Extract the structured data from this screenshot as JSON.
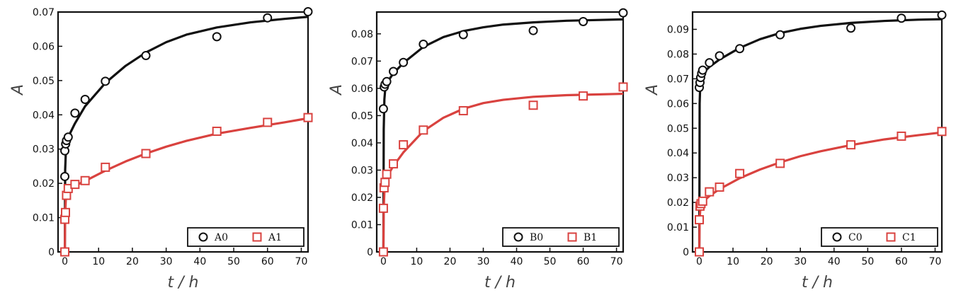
{
  "colors": {
    "black_series": "#111111",
    "red_series": "#d9423f",
    "axis": "#111111"
  },
  "chart_data": [
    {
      "type": "scatter",
      "xlabel": "t / h",
      "ylabel": "A",
      "xlim": [
        -2,
        72
      ],
      "ylim": [
        0,
        0.07
      ],
      "xticks": [
        "0",
        "10",
        "20",
        "30",
        "40",
        "50",
        "60",
        "70"
      ],
      "yticks": [
        "0",
        "0.01",
        "0.02",
        "0.03",
        "0.04",
        "0.05",
        "0.06",
        "0.07"
      ],
      "legend_position": "bottom-right",
      "series": [
        {
          "name": "A0",
          "marker": "circle",
          "color": "#111111",
          "points": [
            [
              0,
              0.022
            ],
            [
              0,
              0.0295
            ],
            [
              0.25,
              0.0315
            ],
            [
              0.5,
              0.0325
            ],
            [
              1,
              0.0335
            ],
            [
              3,
              0.0405
            ],
            [
              6,
              0.0445
            ],
            [
              12,
              0.0498
            ],
            [
              24,
              0.0573
            ],
            [
              45,
              0.0628
            ],
            [
              60,
              0.0683
            ],
            [
              72,
              0.0701
            ]
          ],
          "fit": [
            [
              0,
              0.0
            ],
            [
              0.1,
              0.024
            ],
            [
              0.3,
              0.029
            ],
            [
              0.6,
              0.032
            ],
            [
              1,
              0.0335
            ],
            [
              3,
              0.0375
            ],
            [
              6,
              0.0425
            ],
            [
              12,
              0.0493
            ],
            [
              18,
              0.0543
            ],
            [
              24,
              0.0582
            ],
            [
              30,
              0.0612
            ],
            [
              36,
              0.0634
            ],
            [
              45,
              0.0655
            ],
            [
              55,
              0.067
            ],
            [
              65,
              0.068
            ],
            [
              72,
              0.0686
            ]
          ]
        },
        {
          "name": "A1",
          "marker": "square",
          "color": "#d9423f",
          "points": [
            [
              0,
              0.0
            ],
            [
              0,
              0.0095
            ],
            [
              0.2,
              0.0115
            ],
            [
              0.5,
              0.0165
            ],
            [
              1,
              0.0185
            ],
            [
              3,
              0.0197
            ],
            [
              6,
              0.0208
            ],
            [
              12,
              0.0247
            ],
            [
              24,
              0.0287
            ],
            [
              45,
              0.0352
            ],
            [
              60,
              0.0378
            ],
            [
              72,
              0.0392
            ]
          ],
          "fit": [
            [
              0,
              0.0
            ],
            [
              0.1,
              0.011
            ],
            [
              0.3,
              0.0155
            ],
            [
              0.6,
              0.0175
            ],
            [
              1,
              0.0183
            ],
            [
              3,
              0.0193
            ],
            [
              6,
              0.0207
            ],
            [
              12,
              0.0237
            ],
            [
              18,
              0.0264
            ],
            [
              24,
              0.0287
            ],
            [
              30,
              0.0307
            ],
            [
              36,
              0.0324
            ],
            [
              45,
              0.0345
            ],
            [
              55,
              0.0362
            ],
            [
              65,
              0.0378
            ],
            [
              72,
              0.039
            ]
          ]
        }
      ]
    },
    {
      "type": "scatter",
      "xlabel": "t / h",
      "ylabel": "A",
      "xlim": [
        -2,
        72
      ],
      "ylim": [
        0,
        0.088
      ],
      "xticks": [
        "0",
        "10",
        "20",
        "30",
        "40",
        "50",
        "60",
        "70"
      ],
      "yticks": [
        "0",
        "0.01",
        "0.02",
        "0.03",
        "0.04",
        "0.05",
        "0.06",
        "0.07",
        "0.08"
      ],
      "legend_position": "bottom-right",
      "series": [
        {
          "name": "B0",
          "marker": "circle",
          "color": "#111111",
          "points": [
            [
              0,
              0.0525
            ],
            [
              0.25,
              0.0605
            ],
            [
              0.5,
              0.0615
            ],
            [
              1,
              0.0625
            ],
            [
              3,
              0.0662
            ],
            [
              6,
              0.0695
            ],
            [
              12,
              0.0762
            ],
            [
              24,
              0.0797
            ],
            [
              45,
              0.0812
            ],
            [
              60,
              0.0845
            ],
            [
              72,
              0.0877
            ]
          ],
          "fit": [
            [
              0,
              0.0
            ],
            [
              0.1,
              0.045
            ],
            [
              0.3,
              0.056
            ],
            [
              0.6,
              0.0605
            ],
            [
              1,
              0.062
            ],
            [
              3,
              0.0655
            ],
            [
              6,
              0.0693
            ],
            [
              12,
              0.0752
            ],
            [
              18,
              0.0788
            ],
            [
              24,
              0.081
            ],
            [
              30,
              0.0824
            ],
            [
              36,
              0.0834
            ],
            [
              45,
              0.0842
            ],
            [
              55,
              0.0848
            ],
            [
              65,
              0.0851
            ],
            [
              72,
              0.0853
            ]
          ]
        },
        {
          "name": "B1",
          "marker": "square",
          "color": "#d9423f",
          "points": [
            [
              0,
              0.0
            ],
            [
              0,
              0.016
            ],
            [
              0.2,
              0.0235
            ],
            [
              0.5,
              0.0255
            ],
            [
              1,
              0.0285
            ],
            [
              3,
              0.0323
            ],
            [
              6,
              0.0393
            ],
            [
              12,
              0.0447
            ],
            [
              24,
              0.0518
            ],
            [
              45,
              0.0538
            ],
            [
              60,
              0.0572
            ],
            [
              72,
              0.0605
            ]
          ],
          "fit": [
            [
              0,
              0.0
            ],
            [
              0.1,
              0.016
            ],
            [
              0.3,
              0.022
            ],
            [
              0.6,
              0.0255
            ],
            [
              1,
              0.0275
            ],
            [
              3,
              0.0315
            ],
            [
              6,
              0.0365
            ],
            [
              12,
              0.0443
            ],
            [
              18,
              0.0492
            ],
            [
              24,
              0.0525
            ],
            [
              30,
              0.0546
            ],
            [
              36,
              0.0558
            ],
            [
              45,
              0.0569
            ],
            [
              55,
              0.0575
            ],
            [
              65,
              0.0578
            ],
            [
              72,
              0.058
            ]
          ]
        }
      ]
    },
    {
      "type": "scatter",
      "xlabel": "t / h",
      "ylabel": "A",
      "xlim": [
        -2,
        72
      ],
      "ylim": [
        0,
        0.097
      ],
      "xticks": [
        "0",
        "10",
        "20",
        "30",
        "40",
        "50",
        "60",
        "70"
      ],
      "yticks": [
        "0",
        "0.01",
        "0.02",
        "0.03",
        "0.04",
        "0.05",
        "0.06",
        "0.07",
        "0.08",
        "0.09"
      ],
      "legend_position": "bottom-right",
      "series": [
        {
          "name": "C0",
          "marker": "circle",
          "color": "#111111",
          "points": [
            [
              0,
              0.0665
            ],
            [
              0.2,
              0.0685
            ],
            [
              0.4,
              0.0705
            ],
            [
              0.7,
              0.0722
            ],
            [
              1,
              0.0735
            ],
            [
              3,
              0.0765
            ],
            [
              6,
              0.0793
            ],
            [
              12,
              0.0822
            ],
            [
              24,
              0.0878
            ],
            [
              45,
              0.0905
            ],
            [
              60,
              0.0945
            ],
            [
              72,
              0.0958
            ]
          ],
          "fit": [
            [
              0,
              0.0
            ],
            [
              0.1,
              0.06
            ],
            [
              0.3,
              0.0685
            ],
            [
              0.6,
              0.0712
            ],
            [
              1,
              0.0722
            ],
            [
              3,
              0.0748
            ],
            [
              6,
              0.0778
            ],
            [
              12,
              0.0825
            ],
            [
              18,
              0.086
            ],
            [
              24,
              0.0885
            ],
            [
              30,
              0.0902
            ],
            [
              36,
              0.0914
            ],
            [
              45,
              0.0926
            ],
            [
              55,
              0.0934
            ],
            [
              65,
              0.0939
            ],
            [
              72,
              0.0941
            ]
          ]
        },
        {
          "name": "C1",
          "marker": "square",
          "color": "#d9423f",
          "points": [
            [
              0,
              0.0
            ],
            [
              0,
              0.013
            ],
            [
              0.2,
              0.0185
            ],
            [
              0.5,
              0.0195
            ],
            [
              1,
              0.0205
            ],
            [
              3,
              0.0243
            ],
            [
              6,
              0.0262
            ],
            [
              12,
              0.0317
            ],
            [
              24,
              0.0358
            ],
            [
              45,
              0.0433
            ],
            [
              60,
              0.0468
            ],
            [
              72,
              0.0487
            ]
          ],
          "fit": [
            [
              0,
              0.0
            ],
            [
              0.1,
              0.013
            ],
            [
              0.3,
              0.0175
            ],
            [
              0.6,
              0.0193
            ],
            [
              1,
              0.0202
            ],
            [
              3,
              0.0226
            ],
            [
              6,
              0.0254
            ],
            [
              12,
              0.0298
            ],
            [
              18,
              0.0333
            ],
            [
              24,
              0.0362
            ],
            [
              30,
              0.0387
            ],
            [
              36,
              0.0407
            ],
            [
              45,
              0.0432
            ],
            [
              55,
              0.0455
            ],
            [
              65,
              0.0472
            ],
            [
              72,
              0.0483
            ]
          ]
        }
      ]
    }
  ]
}
